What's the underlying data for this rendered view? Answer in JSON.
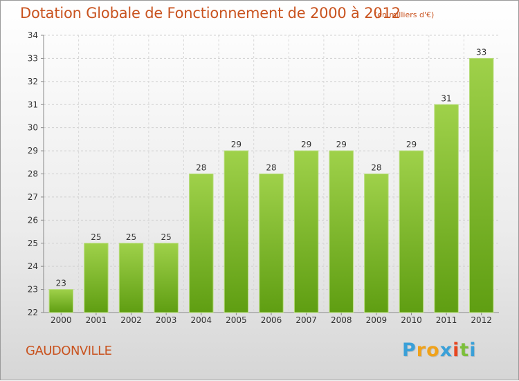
{
  "chart_data": {
    "type": "bar",
    "title": "Dotation Globale de Fonctionnement de 2000 à 2012",
    "subtitle": "(en milliers d'€)",
    "categories": [
      "2000",
      "2001",
      "2002",
      "2003",
      "2004",
      "2005",
      "2006",
      "2007",
      "2008",
      "2009",
      "2010",
      "2011",
      "2012"
    ],
    "values": [
      23,
      25,
      25,
      25,
      28,
      29,
      28,
      29,
      29,
      28,
      29,
      31,
      33
    ],
    "ylim": [
      22,
      34
    ],
    "yticks": [
      22,
      23,
      24,
      25,
      26,
      27,
      28,
      29,
      30,
      31,
      32,
      33,
      34
    ],
    "grid": true,
    "bar_color_top": "#9fd14a",
    "bar_color_bottom": "#5f9e12"
  },
  "commune": "GAUDONVILLE",
  "logo": {
    "letters": [
      "P",
      "r",
      "o",
      "x",
      "i",
      "t",
      "i"
    ],
    "colors": [
      "#3aa0d8",
      "#f0a21a",
      "#f0a21a",
      "#3aa0d8",
      "#e8451e",
      "#7cbf3a",
      "#3aa0d8"
    ]
  }
}
